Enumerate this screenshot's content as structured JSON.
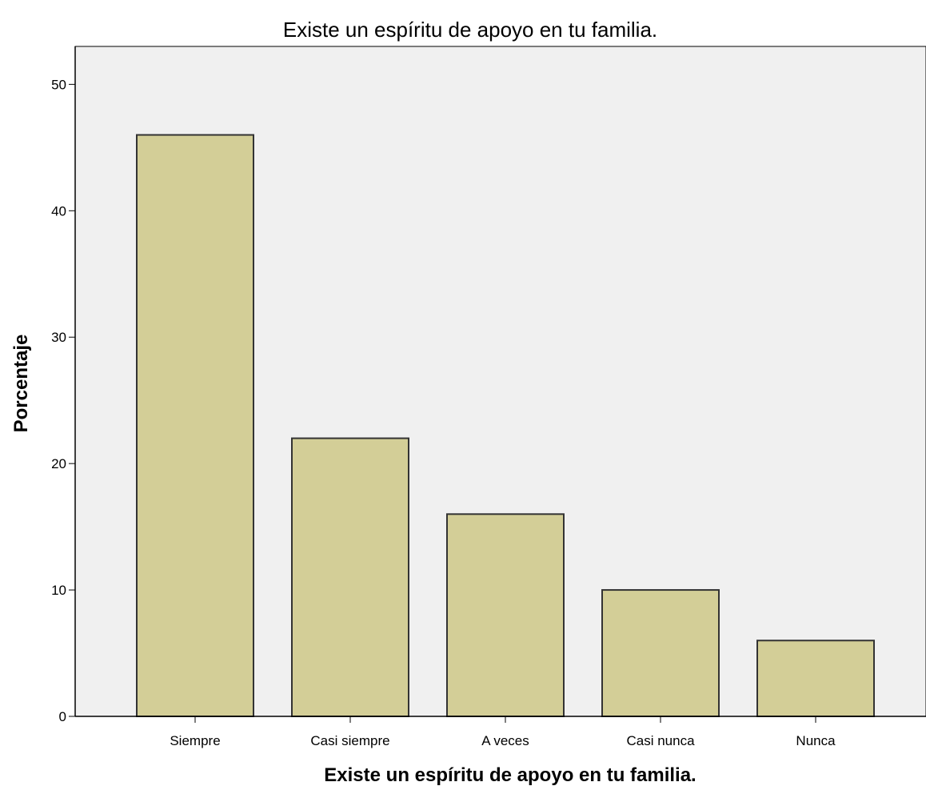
{
  "chart_data": {
    "type": "bar",
    "title": "Existe un espíritu de apoyo en tu familia.",
    "xlabel": "Existe un espíritu de apoyo en tu familia.",
    "ylabel": "Porcentaje",
    "categories": [
      "Siempre",
      "Casi siempre",
      "A veces",
      "Casi nunca",
      "Nunca"
    ],
    "values": [
      46,
      22,
      16,
      10,
      6
    ],
    "ylim": [
      0,
      53
    ],
    "yticks": [
      0,
      10,
      20,
      30,
      40,
      50
    ],
    "grid": false,
    "colors": {
      "bar_fill": "#d3ce97",
      "bar_stroke": "#333333",
      "plot_background": "#f0f0f0",
      "axis": "#000000"
    }
  }
}
